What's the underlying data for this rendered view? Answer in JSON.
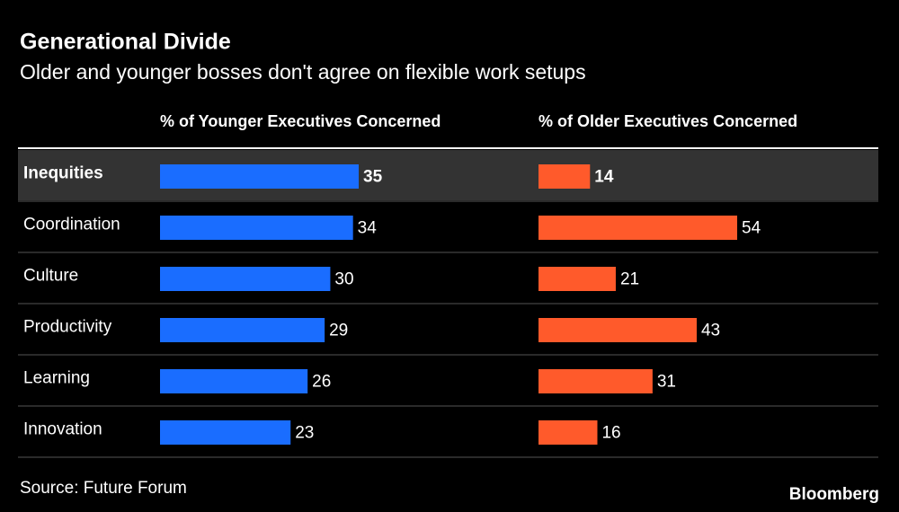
{
  "chart_data": {
    "type": "bar",
    "title": "Generational Divide",
    "subtitle": "Older and younger bosses don't agree on flexible work setups",
    "categories": [
      "Inequities",
      "Coordination",
      "Culture",
      "Productivity",
      "Learning",
      "Innovation"
    ],
    "series": [
      {
        "name": "% of Younger Executives Concerned",
        "color": "#1a6dff",
        "values": [
          35,
          34,
          30,
          29,
          26,
          23
        ]
      },
      {
        "name": "% of Older Executives Concerned",
        "color": "#ff5a2b",
        "values": [
          14,
          54,
          21,
          43,
          31,
          16
        ]
      }
    ],
    "source": "Source: Future Forum",
    "brand": "Bloomberg"
  }
}
